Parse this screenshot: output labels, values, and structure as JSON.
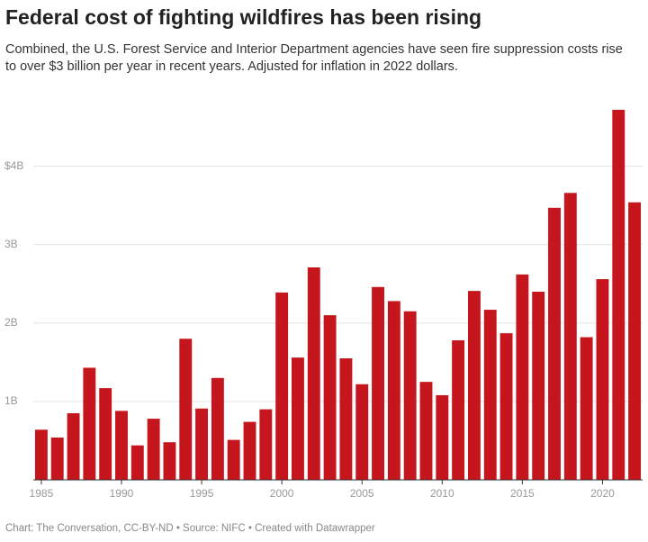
{
  "chart_data": {
    "type": "bar",
    "title": "Federal cost of fighting wildfires has been rising",
    "subtitle": "Combined, the U.S. Forest Service and Interior Department agencies have seen fire suppression costs rise to over $3 billion per year in recent years. Adjusted for inflation in 2022 dollars.",
    "source": "Chart: The Conversation, CC-BY-ND • Source: NIFC • Created with Datawrapper",
    "x": [
      1985,
      1986,
      1987,
      1988,
      1989,
      1990,
      1991,
      1992,
      1993,
      1994,
      1995,
      1996,
      1997,
      1998,
      1999,
      2000,
      2001,
      2002,
      2003,
      2004,
      2005,
      2006,
      2007,
      2008,
      2009,
      2010,
      2011,
      2012,
      2013,
      2014,
      2015,
      2016,
      2017,
      2018,
      2019,
      2020,
      2021,
      2022
    ],
    "values": [
      0.64,
      0.54,
      0.85,
      1.43,
      1.17,
      0.88,
      0.44,
      0.78,
      0.48,
      1.8,
      0.91,
      1.3,
      0.51,
      0.74,
      0.9,
      2.39,
      1.56,
      2.71,
      2.1,
      1.55,
      1.22,
      2.46,
      2.28,
      2.15,
      1.25,
      1.08,
      1.78,
      2.41,
      2.17,
      1.87,
      2.62,
      2.4,
      3.47,
      3.66,
      1.82,
      2.56,
      4.72,
      3.54
    ],
    "color": "#c4161c",
    "xlim": [
      1984.5,
      2022.5
    ],
    "xticks": [
      1985,
      1990,
      1995,
      2000,
      2005,
      2010,
      2015,
      2020
    ],
    "ylim": [
      0,
      4.8
    ],
    "yticks": [
      {
        "value": 1,
        "label": "1B"
      },
      {
        "value": 2,
        "label": "2B"
      },
      {
        "value": 3,
        "label": "3B"
      },
      {
        "value": 4,
        "label": "$4B"
      }
    ],
    "grid": true
  }
}
